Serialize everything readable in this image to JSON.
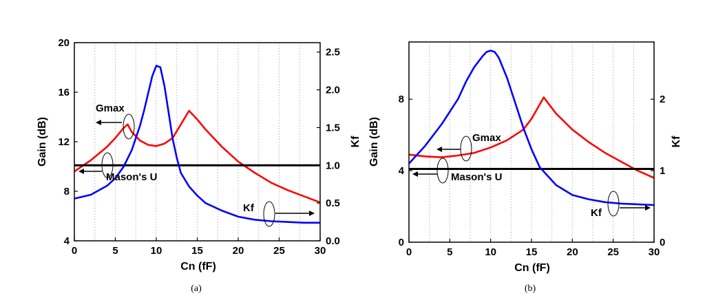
{
  "chart_data": [
    {
      "type": "line",
      "caption": "(a)",
      "xlabel": "Cn (fF)",
      "ylabel": "Gain (dB)",
      "y2label": "Kf",
      "xlim": [
        0,
        30
      ],
      "ylim": [
        4,
        20
      ],
      "y2lim": [
        0,
        2.625
      ],
      "xticks": [
        0,
        5,
        10,
        15,
        20,
        25,
        30
      ],
      "yticks": [
        4,
        8,
        12,
        16,
        20
      ],
      "y2ticks": [
        0.0,
        0.5,
        1.0,
        1.5,
        2.0,
        2.5
      ],
      "ytick_labels": [
        "4",
        "8",
        "12",
        "16",
        "20"
      ],
      "y2tick_labels": [
        "0.0",
        "0.5",
        "1.0",
        "1.5",
        "2.0",
        "2.5"
      ],
      "grid": "vertical dotted",
      "series": [
        {
          "name": "Gmax",
          "axis": "left",
          "color": "#ff0000",
          "x": [
            0,
            2,
            4,
            5,
            6,
            6.5,
            7,
            8,
            9,
            10,
            11,
            12,
            13,
            14,
            15,
            16,
            18,
            20,
            22,
            24,
            26,
            28,
            30
          ],
          "y": [
            9.6,
            10.5,
            11.6,
            12.3,
            13.1,
            13.4,
            12.8,
            12.1,
            11.75,
            11.65,
            11.85,
            12.3,
            13.4,
            14.5,
            13.8,
            13.0,
            11.6,
            10.4,
            9.5,
            8.7,
            8.1,
            7.6,
            7.1
          ]
        },
        {
          "name": "Mason's U",
          "axis": "left",
          "color": "#000000",
          "x": [
            0,
            30
          ],
          "y": [
            10.1,
            10.1
          ]
        },
        {
          "name": "Kf",
          "axis": "right",
          "color": "#0000ff",
          "x": [
            0,
            2,
            4,
            5,
            6,
            7,
            8,
            8.5,
            9,
            9.5,
            10,
            10.5,
            11,
            11.5,
            12,
            12.5,
            13,
            14,
            15,
            16,
            18,
            20,
            22,
            24,
            26,
            28,
            30
          ],
          "y": [
            0.56,
            0.61,
            0.73,
            0.83,
            0.98,
            1.2,
            1.52,
            1.72,
            1.95,
            2.18,
            2.32,
            2.3,
            2.05,
            1.7,
            1.35,
            1.1,
            0.9,
            0.72,
            0.6,
            0.5,
            0.4,
            0.32,
            0.28,
            0.26,
            0.25,
            0.24,
            0.24
          ]
        }
      ],
      "annotations": [
        "Gmax",
        "Mason's U",
        "Kf"
      ]
    },
    {
      "type": "line",
      "caption": "(b)",
      "xlabel": "Cn (fF)",
      "ylabel": "Gain (dB)",
      "y2label": "Kf",
      "xlim": [
        0,
        30
      ],
      "ylim": [
        0,
        11.2
      ],
      "y2lim": [
        0,
        2.8
      ],
      "xticks": [
        0,
        5,
        10,
        15,
        20,
        25,
        30
      ],
      "yticks": [
        0,
        4,
        8
      ],
      "y2ticks": [
        0,
        1,
        2
      ],
      "ytick_labels": [
        "0",
        "4",
        "8"
      ],
      "y2tick_labels": [
        "0",
        "1",
        "2"
      ],
      "grid": "vertical dotted",
      "series": [
        {
          "name": "Gmax",
          "axis": "left",
          "color": "#ff0000",
          "x": [
            0,
            2,
            4,
            6,
            8,
            10,
            12,
            14,
            15,
            16,
            16.5,
            17,
            18,
            20,
            22,
            24,
            26,
            28,
            30
          ],
          "y": [
            4.9,
            4.8,
            4.75,
            4.85,
            5.0,
            5.3,
            5.7,
            6.3,
            6.9,
            7.7,
            8.1,
            7.8,
            7.2,
            6.3,
            5.6,
            5.0,
            4.5,
            4.0,
            3.6
          ]
        },
        {
          "name": "Mason's U",
          "axis": "left",
          "color": "#000000",
          "x": [
            0,
            30
          ],
          "y": [
            4.1,
            4.1
          ]
        },
        {
          "name": "Kf",
          "axis": "right",
          "color": "#0000ff",
          "x": [
            0,
            2,
            4,
            6,
            7,
            8,
            9,
            9.5,
            10,
            10.5,
            11,
            12,
            13,
            14,
            15,
            16,
            18,
            20,
            22,
            24,
            26,
            28,
            30
          ],
          "y": [
            1.1,
            1.35,
            1.65,
            2.0,
            2.25,
            2.45,
            2.6,
            2.66,
            2.68,
            2.66,
            2.58,
            2.3,
            1.95,
            1.6,
            1.3,
            1.05,
            0.8,
            0.66,
            0.6,
            0.56,
            0.54,
            0.53,
            0.52
          ]
        }
      ],
      "annotations": [
        "Gmax",
        "Mason's U",
        "Kf"
      ]
    }
  ]
}
